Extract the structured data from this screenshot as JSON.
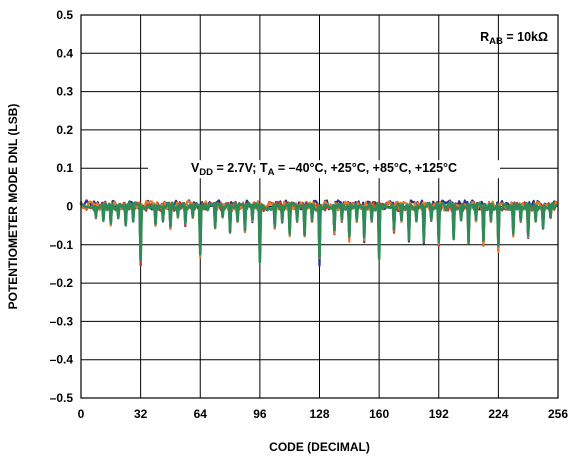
{
  "chart_data": {
    "type": "line",
    "title": "",
    "xlabel": "CODE (DECIMAL)",
    "ylabel": "POTENTIOMETER MODE DNL (LSB)",
    "xlim": [
      0,
      256
    ],
    "ylim": [
      -0.5,
      0.5
    ],
    "xticks": [
      0,
      32,
      64,
      96,
      128,
      160,
      192,
      224,
      256
    ],
    "yticks": [
      0.5,
      0.4,
      0.3,
      0.2,
      0.1,
      0,
      -0.1,
      -0.2,
      -0.3,
      -0.4,
      -0.5
    ],
    "xtick_labels": [
      "0",
      "32",
      "64",
      "96",
      "128",
      "160",
      "192",
      "224",
      "256"
    ],
    "ytick_labels": [
      "0.5",
      "0.4",
      "0.3",
      "0.2",
      "0.1",
      "0",
      "–0.1",
      "–0.2",
      "–0.3",
      "–0.4",
      "–0.5"
    ],
    "grid": true,
    "annotations": {
      "rab": {
        "main": "R",
        "sub": "AB",
        "rest": " = 10kΩ"
      },
      "conditions": {
        "v": "V",
        "vsub": "DD",
        "mid": " = 2.7V; T",
        "tsub": "A",
        "rest": " = –40°C, +25°C, +85°C, +125°C"
      }
    },
    "dips": [
      {
        "code": 8,
        "depth": -0.03
      },
      {
        "code": 12,
        "depth": -0.04
      },
      {
        "code": 16,
        "depth": -0.05
      },
      {
        "code": 20,
        "depth": -0.03
      },
      {
        "code": 24,
        "depth": -0.05
      },
      {
        "code": 28,
        "depth": -0.04
      },
      {
        "code": 32,
        "depth": -0.16
      },
      {
        "code": 40,
        "depth": -0.05
      },
      {
        "code": 44,
        "depth": -0.04
      },
      {
        "code": 48,
        "depth": -0.06
      },
      {
        "code": 52,
        "depth": -0.03
      },
      {
        "code": 56,
        "depth": -0.05
      },
      {
        "code": 60,
        "depth": -0.03
      },
      {
        "code": 64,
        "depth": -0.14
      },
      {
        "code": 72,
        "depth": -0.06
      },
      {
        "code": 76,
        "depth": -0.03
      },
      {
        "code": 80,
        "depth": -0.07
      },
      {
        "code": 84,
        "depth": -0.04
      },
      {
        "code": 88,
        "depth": -0.07
      },
      {
        "code": 92,
        "depth": -0.04
      },
      {
        "code": 96,
        "depth": -0.15
      },
      {
        "code": 104,
        "depth": -0.06
      },
      {
        "code": 108,
        "depth": -0.04
      },
      {
        "code": 112,
        "depth": -0.08
      },
      {
        "code": 116,
        "depth": -0.04
      },
      {
        "code": 120,
        "depth": -0.08
      },
      {
        "code": 124,
        "depth": -0.04
      },
      {
        "code": 128,
        "depth": -0.15
      },
      {
        "code": 136,
        "depth": -0.07
      },
      {
        "code": 140,
        "depth": -0.04
      },
      {
        "code": 144,
        "depth": -0.09
      },
      {
        "code": 148,
        "depth": -0.04
      },
      {
        "code": 152,
        "depth": -0.09
      },
      {
        "code": 156,
        "depth": -0.04
      },
      {
        "code": 160,
        "depth": -0.14
      },
      {
        "code": 168,
        "depth": -0.07
      },
      {
        "code": 172,
        "depth": -0.04
      },
      {
        "code": 176,
        "depth": -0.09
      },
      {
        "code": 180,
        "depth": -0.04
      },
      {
        "code": 184,
        "depth": -0.1
      },
      {
        "code": 188,
        "depth": -0.04
      },
      {
        "code": 192,
        "depth": -0.11
      },
      {
        "code": 200,
        "depth": -0.09
      },
      {
        "code": 204,
        "depth": -0.04
      },
      {
        "code": 208,
        "depth": -0.1
      },
      {
        "code": 212,
        "depth": -0.04
      },
      {
        "code": 216,
        "depth": -0.1
      },
      {
        "code": 220,
        "depth": -0.04
      },
      {
        "code": 224,
        "depth": -0.12
      },
      {
        "code": 232,
        "depth": -0.08
      },
      {
        "code": 236,
        "depth": -0.04
      },
      {
        "code": 240,
        "depth": -0.09
      },
      {
        "code": 244,
        "depth": -0.04
      },
      {
        "code": 248,
        "depth": -0.06
      },
      {
        "code": 252,
        "depth": -0.03
      }
    ],
    "series": [
      {
        "color": "#2a2f7f",
        "depth_scale": 1.0,
        "noise": 0.012,
        "offset": 0.004
      },
      {
        "color": "#c0392b",
        "depth_scale": 0.95,
        "noise": 0.012,
        "offset": 0.0
      },
      {
        "color": "#e8792a",
        "depth_scale": 0.98,
        "noise": 0.012,
        "offset": 0.002
      },
      {
        "color": "#2e8b57",
        "depth_scale": 0.93,
        "noise": 0.01,
        "offset": 0.0
      }
    ],
    "colors": {
      "axis": "#000000",
      "grid": "#000000",
      "background": "#ffffff"
    }
  }
}
